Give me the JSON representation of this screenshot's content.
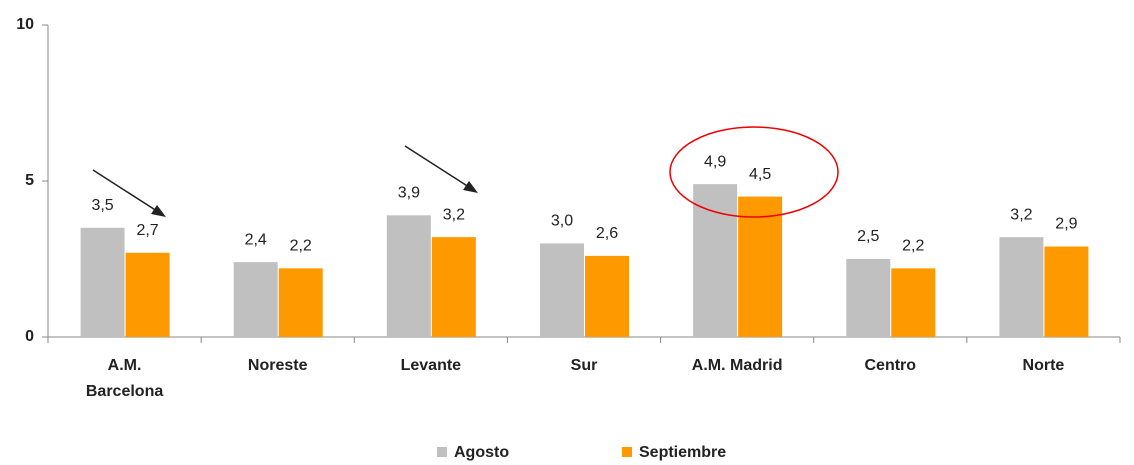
{
  "chart_data": {
    "type": "bar",
    "categories": [
      "A.M.\nBarcelona",
      "Noreste",
      "Levante",
      "Sur",
      "A.M. Madrid",
      "Centro",
      "Norte"
    ],
    "series": [
      {
        "name": "Agosto",
        "color": "#c0c0c0",
        "values": [
          3.5,
          2.4,
          3.9,
          3.0,
          4.9,
          2.5,
          3.2
        ],
        "value_labels": [
          "3,5",
          "2,4",
          "3,9",
          "3,0",
          "4,9",
          "2,5",
          "3,2"
        ]
      },
      {
        "name": "Septiembre",
        "color": "#ff9900",
        "values": [
          2.7,
          2.2,
          3.2,
          2.6,
          4.5,
          2.2,
          2.9
        ],
        "value_labels": [
          "2,7",
          "2,2",
          "3,2",
          "2,6",
          "4,5",
          "2,2",
          "2,9"
        ]
      }
    ],
    "ylim": [
      0,
      10
    ],
    "yticks": [
      0,
      5,
      10
    ],
    "grid": false,
    "legend": "bottom"
  }
}
